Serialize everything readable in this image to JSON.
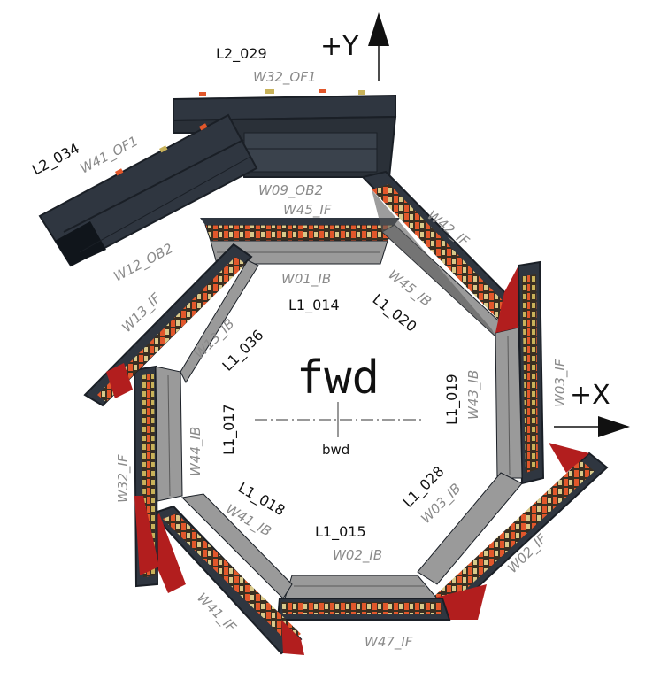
{
  "center": {
    "fwd": "fwd",
    "bwd": "bwd"
  },
  "axes": {
    "y": "+Y",
    "x": "+X"
  },
  "colors": {
    "ladder_dark": "#2f3640",
    "ladder_edge": "#1a1f26",
    "sensor_gray": "#9a9a9a",
    "sensor_dark": "#5b5b5b",
    "chip_orange": "#e2572b",
    "chip_yellow": "#c8b25a",
    "rim_red": "#b21e1e",
    "label_black": "#111111",
    "label_gray": "#8a8a8a"
  },
  "l1_labels": [
    "L1_014",
    "L1_020",
    "L1_019",
    "L1_028",
    "L1_015",
    "L1_018",
    "L1_017",
    "L1_036"
  ],
  "ib_labels": [
    "W01_IB",
    "W45_IB",
    "W43_IB",
    "W03_IB",
    "W02_IB",
    "W41_IB",
    "W44_IB",
    "W13_IB"
  ],
  "if_labels": [
    "W45_IF",
    "W42_IF",
    "W03_IF",
    "W02_IF",
    "W47_IF",
    "W41_IF",
    "W32_IF",
    "W13_IF"
  ],
  "l2": {
    "top_id": "L2_029",
    "top_of": "W32_OF1",
    "top_ob": "W09_OB2",
    "left_id": "L2_034",
    "left_of": "W41_OF1",
    "left_ob": "W12_OB2"
  }
}
